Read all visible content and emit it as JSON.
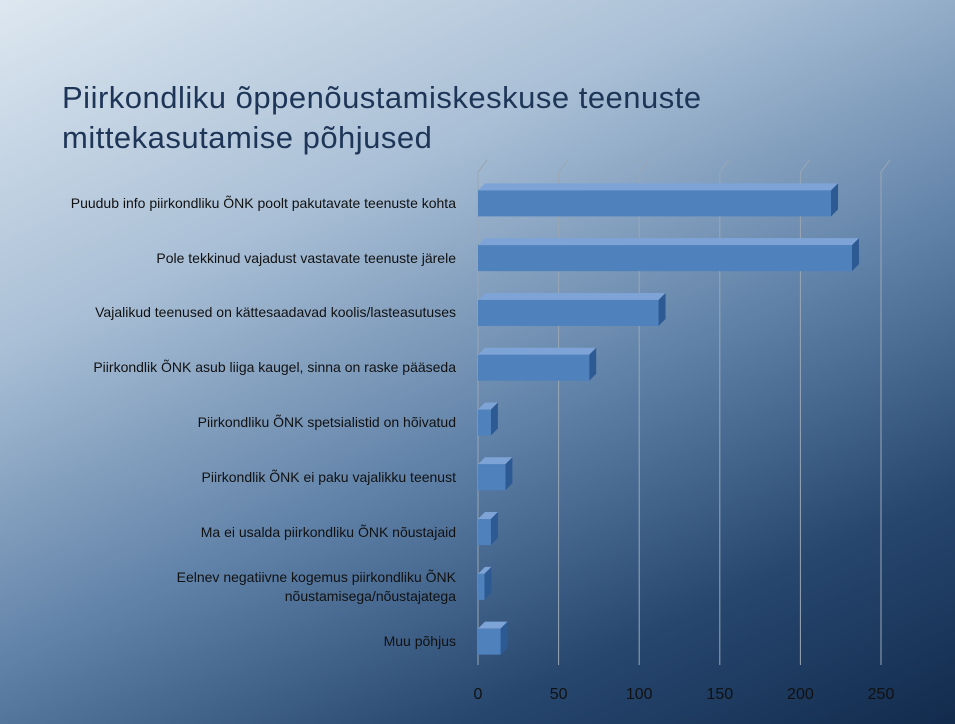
{
  "chart_data": {
    "type": "bar3d-horizontal",
    "title": "Piirkondliku õppenõustamiskeskuse teenuste mittekasutamise põhjused",
    "categories": [
      "Puudub info piirkondliku ÕNK poolt pakutavate teenuste kohta",
      "Pole tekkinud vajadust vastavate teenuste järele",
      "Vajalikud teenused on kättesaadavad koolis/lasteasutuses",
      "Piirkondlik ÕNK asub liiga kaugel, sinna on raske pääseda",
      "Piirkondliku ÕNK spetsialistid on hõivatud",
      "Piirkondlik ÕNK ei paku vajalikku teenust",
      "Ma ei usalda piirkondliku ÕNK nõustajaid",
      "Eelnev negatiivne kogemus piirkondliku ÕNK nõustamisega/nõustajatega",
      "Muu põhjus"
    ],
    "values": [
      219,
      232,
      112,
      69,
      8,
      17,
      8,
      4,
      14
    ],
    "color": "#4f81bd",
    "xlim": [
      0,
      250
    ],
    "xticks": [
      0,
      50,
      100,
      150,
      200,
      250
    ],
    "grid": true
  }
}
